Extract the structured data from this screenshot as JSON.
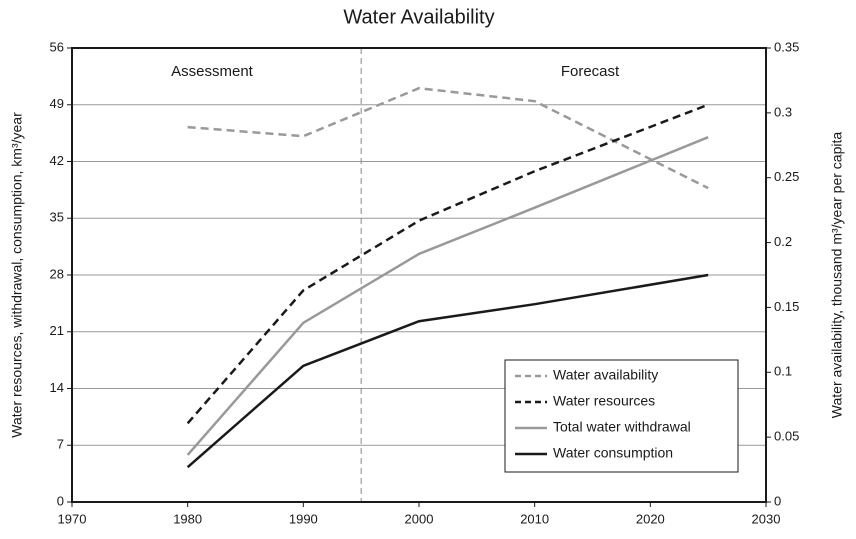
{
  "chart_data": {
    "type": "line",
    "title": "Water Availability",
    "x": [
      1980,
      1990,
      2000,
      2010,
      2025
    ],
    "xlim": [
      1970,
      2030
    ],
    "xticks": [
      1970,
      1980,
      1990,
      2000,
      2010,
      2020,
      2030
    ],
    "ylim": [
      0,
      56
    ],
    "yticks": [
      0,
      7,
      14,
      21,
      28,
      35,
      42,
      49,
      56
    ],
    "y2lim": [
      0,
      0.35
    ],
    "y2ticks": [
      0,
      0.05,
      0.1,
      0.15,
      0.2,
      0.25,
      0.3,
      0.35
    ],
    "ylabel": "Water resources, withdrawal, consumption, km³/year",
    "y2label": "Water availability, thousand m³/year per capita",
    "grid": true,
    "legend": "lower right",
    "divider_x": 1995,
    "annotations": [
      "Assessment",
      "Forecast"
    ],
    "series": [
      {
        "name": "Water availability",
        "color": "#999999",
        "style": "dashed",
        "axis": "y2",
        "values": [
          0.289,
          0.282,
          0.319,
          0.309,
          0.242
        ]
      },
      {
        "name": "Water resources",
        "color": "#1a1a1a",
        "style": "dashed",
        "values": [
          9.7,
          26.1,
          34.7,
          40.8,
          49.0
        ]
      },
      {
        "name": "Total water withdrawal",
        "color": "#999999",
        "style": "solid",
        "values": [
          5.8,
          22.1,
          30.6,
          36.3,
          45.0
        ]
      },
      {
        "name": "Water consumption",
        "color": "#1a1a1a",
        "style": "solid",
        "values": [
          4.3,
          16.8,
          22.3,
          24.4,
          28.0
        ]
      }
    ]
  }
}
